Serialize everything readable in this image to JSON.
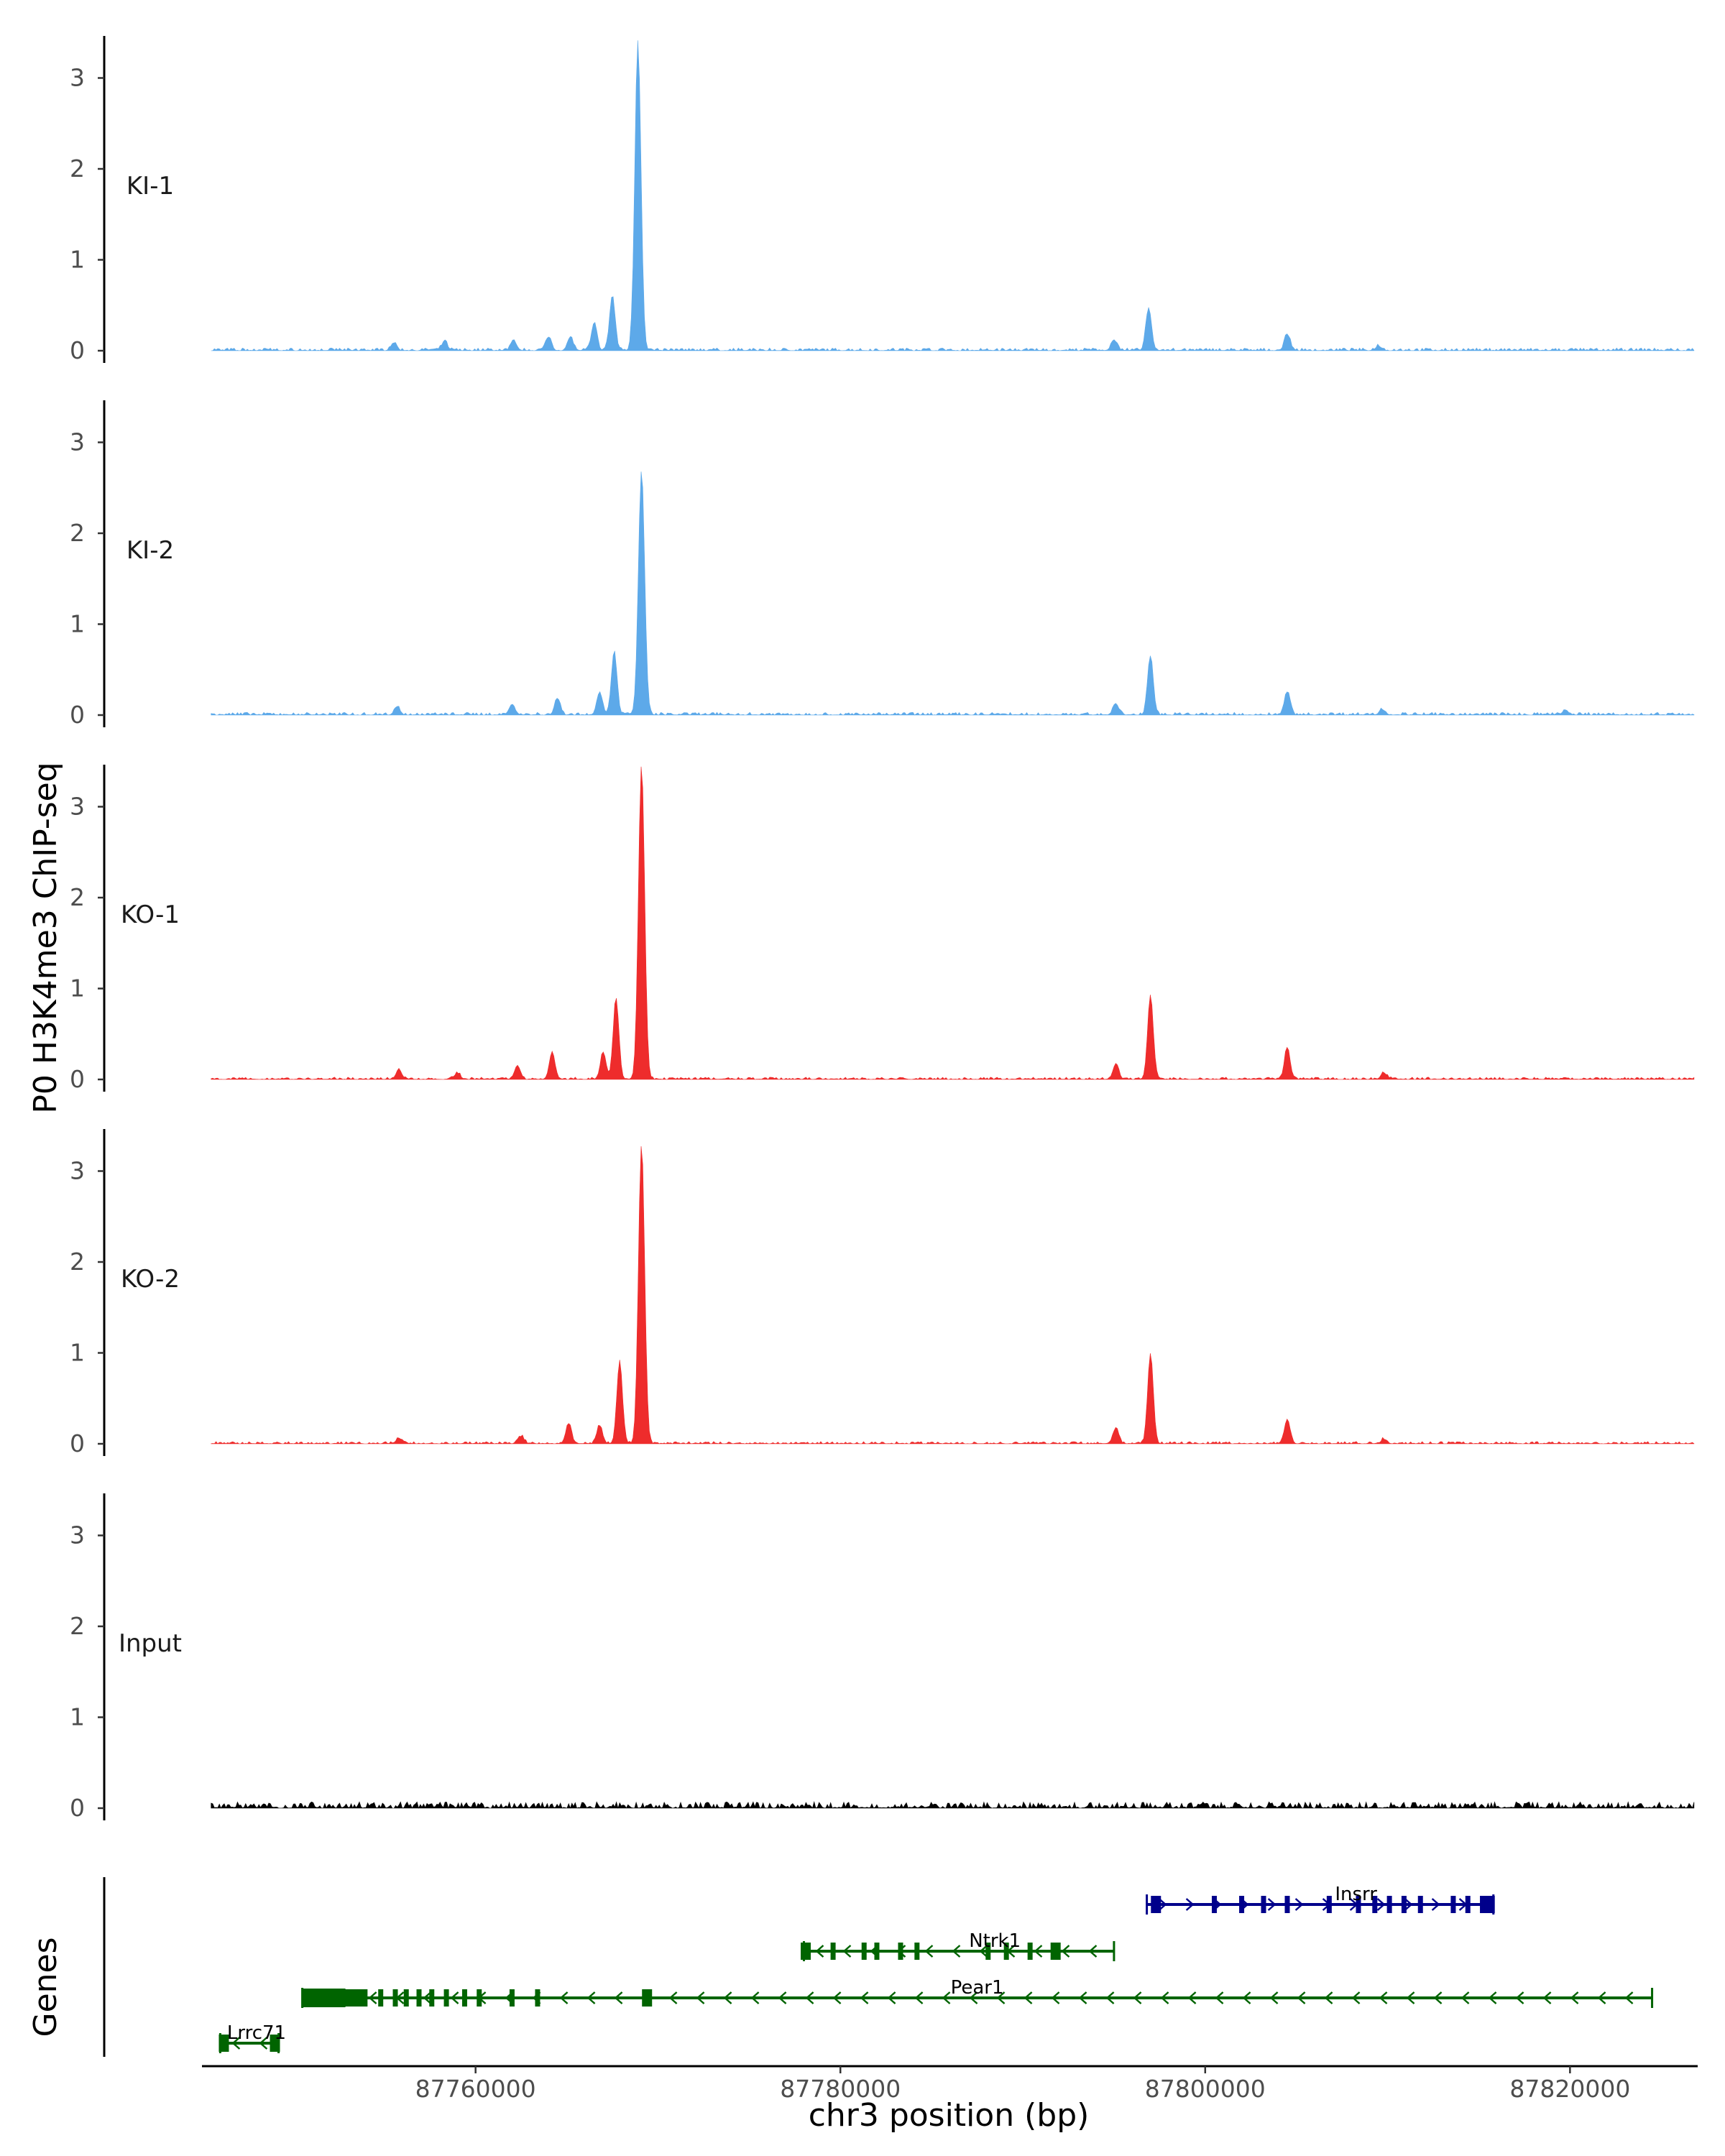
{
  "chart_data": {
    "type": "area",
    "ylabel": "P0 H3K4me3 ChIP-seq",
    "xlabel": "chr3 position (bp)",
    "xlim": [
      87745000,
      87827000
    ],
    "ylim": [
      0,
      3.5
    ],
    "y_ticks": [
      "0",
      "1",
      "2",
      "3"
    ],
    "x_ticks": [
      {
        "value": 87760000,
        "label": "87760000"
      },
      {
        "value": 87780000,
        "label": "87780000"
      },
      {
        "value": 87800000,
        "label": "87800000"
      },
      {
        "value": 87820000,
        "label": "87820000"
      }
    ],
    "tracks": [
      {
        "name": "KI-1",
        "color": "#5DA9E9",
        "peaks": [
          [
            87768900,
            3.4
          ],
          [
            87767500,
            0.6
          ],
          [
            87766500,
            0.3
          ],
          [
            87765200,
            0.15
          ],
          [
            87764000,
            0.15
          ],
          [
            87762100,
            0.1
          ],
          [
            87758300,
            0.1
          ],
          [
            87755500,
            0.08
          ],
          [
            87795000,
            0.12
          ],
          [
            87796900,
            0.47
          ],
          [
            87804500,
            0.18
          ],
          [
            87809500,
            0.05
          ]
        ],
        "noise": 0.03
      },
      {
        "name": "KI-2",
        "color": "#5DA9E9",
        "peaks": [
          [
            87769100,
            2.7
          ],
          [
            87767600,
            0.7
          ],
          [
            87766800,
            0.25
          ],
          [
            87764500,
            0.18
          ],
          [
            87762000,
            0.12
          ],
          [
            87755700,
            0.09
          ],
          [
            87795100,
            0.12
          ],
          [
            87797000,
            0.65
          ],
          [
            87804500,
            0.25
          ],
          [
            87809700,
            0.06
          ],
          [
            87819700,
            0.04
          ]
        ],
        "noise": 0.03
      },
      {
        "name": "KO-1",
        "color": "#EE2C2C",
        "peaks": [
          [
            87769100,
            3.45
          ],
          [
            87767700,
            0.9
          ],
          [
            87767000,
            0.3
          ],
          [
            87764200,
            0.3
          ],
          [
            87762300,
            0.15
          ],
          [
            87759000,
            0.07
          ],
          [
            87755800,
            0.1
          ],
          [
            87795100,
            0.17
          ],
          [
            87797000,
            0.92
          ],
          [
            87804500,
            0.35
          ],
          [
            87809800,
            0.07
          ]
        ],
        "noise": 0.025
      },
      {
        "name": "KO-2",
        "color": "#EE2C2C",
        "peaks": [
          [
            87769100,
            3.3
          ],
          [
            87767900,
            0.9
          ],
          [
            87766800,
            0.2
          ],
          [
            87765100,
            0.22
          ],
          [
            87762500,
            0.08
          ],
          [
            87755800,
            0.06
          ],
          [
            87795100,
            0.17
          ],
          [
            87797000,
            0.98
          ],
          [
            87804500,
            0.27
          ],
          [
            87809800,
            0.05
          ]
        ],
        "noise": 0.025
      },
      {
        "name": "Input",
        "color": "#000000",
        "peaks": [],
        "noise": 0.07
      }
    ],
    "genes_panel": {
      "label": "Genes",
      "genes": [
        {
          "name": "Insrr",
          "start": 87796800,
          "end": 87815800,
          "strand": "+",
          "color": "#00008B",
          "exons": [
            87797300,
            87800500,
            87802000,
            87803200,
            87804500,
            87806800,
            87808400,
            87809300,
            87810100,
            87810900,
            87811800,
            87813600,
            87814400,
            87815200,
            87815600
          ]
        },
        {
          "name": "Ntrk1",
          "start": 87778000,
          "end": 87795000,
          "strand": "-",
          "color": "#006400",
          "exons": [
            87778100,
            87779600,
            87781300,
            87782000,
            87783300,
            87784200,
            87788100,
            87789100,
            87790400,
            87791800
          ]
        },
        {
          "name": "Pear1",
          "start": 87750500,
          "end": 87824500,
          "strand": "-",
          "color": "#006400",
          "exons": [
            87751000,
            87752600,
            87753400,
            87754800,
            87755600,
            87756200,
            87756900,
            87757600,
            87758400,
            87759400,
            87760200,
            87762000,
            87763400,
            87769400
          ]
        },
        {
          "name": "Lrrc71",
          "start": 87746000,
          "end": 87749200,
          "strand": "-",
          "color": "#006400",
          "exons": [
            87746200,
            87749000
          ]
        }
      ]
    }
  }
}
